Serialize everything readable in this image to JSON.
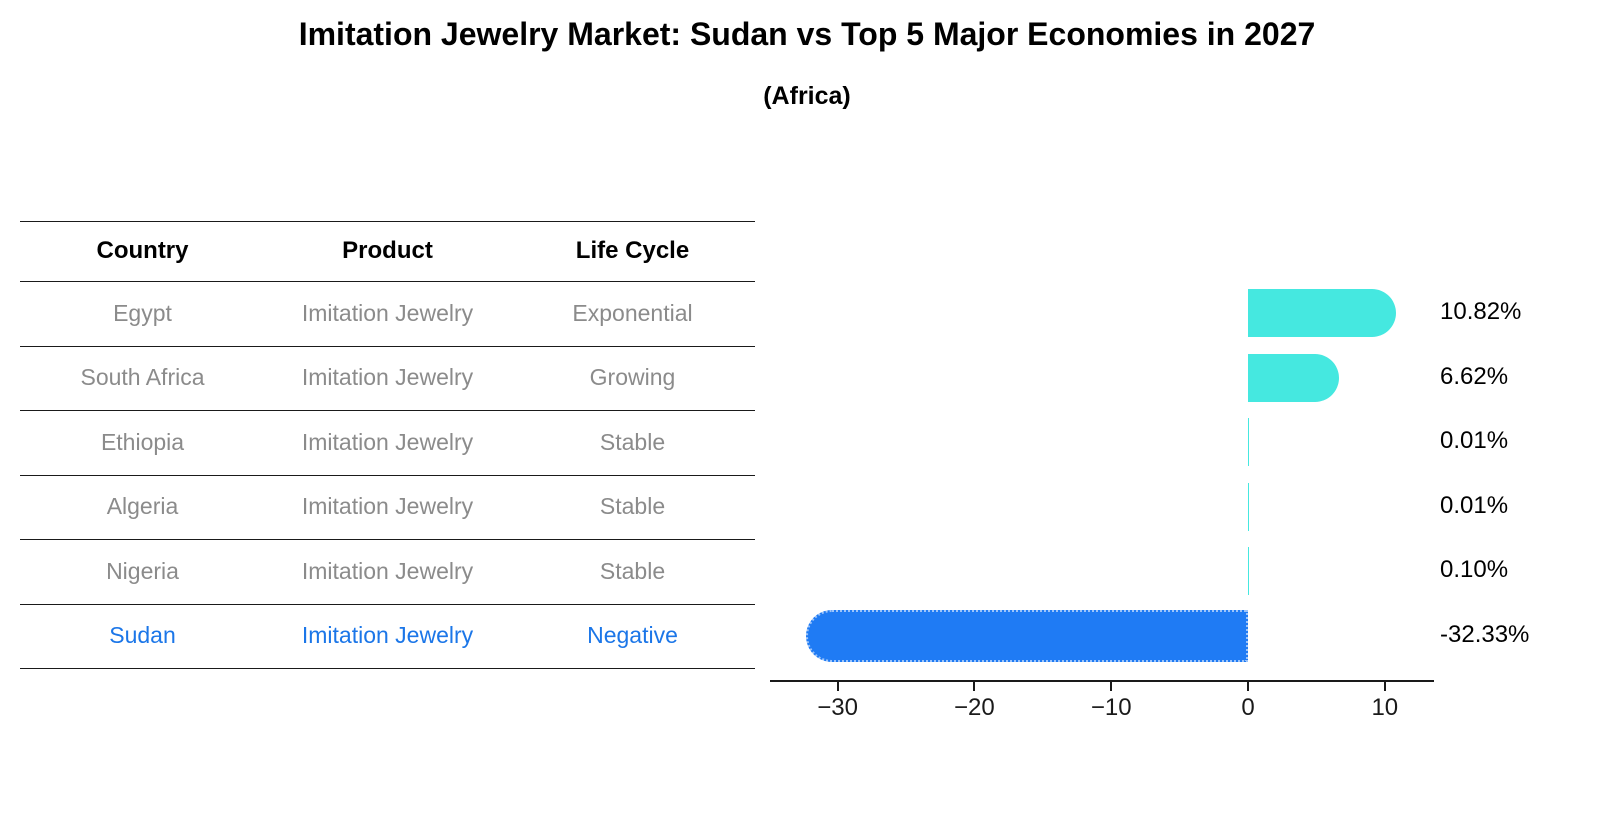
{
  "title": "Imitation Jewelry Market: Sudan vs Top 5 Major Economies in 2027",
  "subtitle": "(Africa)",
  "table": {
    "headers": [
      "Country",
      "Product",
      "Life Cycle"
    ],
    "rows": [
      {
        "country": "Egypt",
        "product": "Imitation Jewelry",
        "life_cycle": "Exponential",
        "highlight": false
      },
      {
        "country": "South Africa",
        "product": "Imitation Jewelry",
        "life_cycle": "Growing",
        "highlight": false
      },
      {
        "country": "Ethiopia",
        "product": "Imitation Jewelry",
        "life_cycle": "Stable",
        "highlight": false
      },
      {
        "country": "Algeria",
        "product": "Imitation Jewelry",
        "life_cycle": "Stable",
        "highlight": false
      },
      {
        "country": "Nigeria",
        "product": "Imitation Jewelry",
        "life_cycle": "Stable",
        "highlight": false
      },
      {
        "country": "Sudan",
        "product": "Imitation Jewelry",
        "life_cycle": "Negative",
        "highlight": true
      }
    ]
  },
  "chart_data": {
    "type": "bar",
    "orientation": "horizontal",
    "title": "Imitation Jewelry Market: Sudan vs Top 5 Major Economies in 2027 (Africa)",
    "categories": [
      "Egypt",
      "South Africa",
      "Ethiopia",
      "Algeria",
      "Nigeria",
      "Sudan"
    ],
    "values": [
      10.82,
      6.62,
      0.01,
      0.01,
      0.1,
      -32.33
    ],
    "value_labels": [
      "10.82%",
      "6.62%",
      "0.01%",
      "0.01%",
      "0.10%",
      "-32.33%"
    ],
    "xlabel": "",
    "ylabel": "",
    "xlim": [
      -35,
      13.5
    ],
    "xticks": [
      -30,
      -20,
      -10,
      0,
      10
    ],
    "xtick_labels": [
      "−30",
      "−20",
      "−10",
      "0",
      "10"
    ],
    "grid": false,
    "legend": false,
    "colors": {
      "positive": "#45e8e0",
      "negative": "#1f7bf4",
      "highlight_text": "#1b76e8"
    }
  }
}
